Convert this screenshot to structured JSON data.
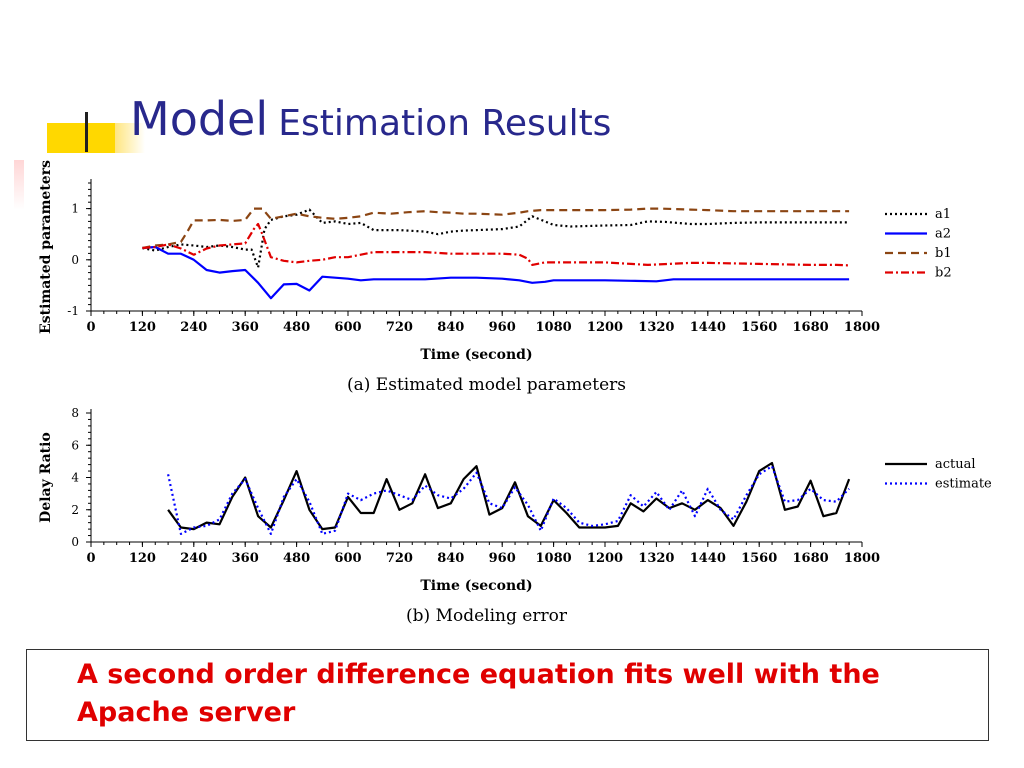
{
  "slide": {
    "title_word1": "Model",
    "title_rest": "Estimation Results",
    "conclusion": "A second order difference equation fits well with the Apache server",
    "accent_title_color": "#28288c",
    "accent_conclusion_color": "#e00000",
    "accent_decoration_color": "#ffd800"
  },
  "chart_data": [
    {
      "type": "line",
      "caption": "(a) Estimated model parameters",
      "xlabel": "Time (second)",
      "ylabel": "Estimated parameters",
      "xlim": [
        0,
        1800
      ],
      "ylim": [
        -1,
        1.5
      ],
      "xticks": [
        0,
        120,
        240,
        360,
        480,
        600,
        720,
        840,
        960,
        1080,
        1200,
        1320,
        1440,
        1560,
        1680,
        1800
      ],
      "yticks": [
        -1,
        0,
        1
      ],
      "legend": "right",
      "series": [
        {
          "name": "a1",
          "color": "#000000",
          "dash": "dotted",
          "x": [
            120,
            150,
            180,
            210,
            240,
            270,
            300,
            330,
            360,
            375,
            390,
            405,
            420,
            450,
            480,
            510,
            525,
            540,
            570,
            600,
            630,
            660,
            720,
            780,
            810,
            840,
            870,
            900,
            960,
            1000,
            1030,
            1060,
            1080,
            1120,
            1200,
            1260,
            1300,
            1340,
            1400,
            1440,
            1500,
            1560,
            1620,
            1680,
            1740,
            1770
          ],
          "y": [
            0.23,
            0.18,
            0.25,
            0.3,
            0.28,
            0.25,
            0.28,
            0.25,
            0.2,
            0.2,
            -0.15,
            0.6,
            0.78,
            0.85,
            0.88,
            0.98,
            0.85,
            0.72,
            0.75,
            0.7,
            0.72,
            0.58,
            0.58,
            0.55,
            0.5,
            0.55,
            0.57,
            0.58,
            0.6,
            0.65,
            0.85,
            0.75,
            0.68,
            0.65,
            0.67,
            0.68,
            0.75,
            0.74,
            0.7,
            0.7,
            0.72,
            0.73,
            0.73,
            0.73,
            0.73,
            0.73
          ]
        },
        {
          "name": "a2",
          "color": "#0000ff",
          "dash": "solid",
          "x": [
            120,
            150,
            180,
            210,
            240,
            270,
            300,
            330,
            360,
            390,
            420,
            450,
            480,
            510,
            540,
            570,
            600,
            630,
            660,
            720,
            780,
            840,
            900,
            960,
            1000,
            1030,
            1060,
            1080,
            1140,
            1200,
            1260,
            1320,
            1360,
            1440,
            1500,
            1560,
            1620,
            1680,
            1740,
            1770
          ],
          "y": [
            0.23,
            0.25,
            0.12,
            0.12,
            0.0,
            -0.2,
            -0.25,
            -0.22,
            -0.2,
            -0.45,
            -0.75,
            -0.48,
            -0.47,
            -0.6,
            -0.33,
            -0.35,
            -0.37,
            -0.4,
            -0.38,
            -0.38,
            -0.38,
            -0.35,
            -0.35,
            -0.37,
            -0.4,
            -0.45,
            -0.43,
            -0.4,
            -0.4,
            -0.4,
            -0.41,
            -0.42,
            -0.38,
            -0.38,
            -0.38,
            -0.38,
            -0.38,
            -0.38,
            -0.38,
            -0.38
          ]
        },
        {
          "name": "b1",
          "color": "#8b4513",
          "dash": "dashed",
          "x": [
            120,
            150,
            180,
            210,
            225,
            240,
            270,
            300,
            330,
            360,
            380,
            400,
            420,
            450,
            480,
            510,
            540,
            570,
            600,
            630,
            660,
            700,
            740,
            780,
            810,
            840,
            870,
            900,
            960,
            1000,
            1020,
            1050,
            1080,
            1120,
            1200,
            1260,
            1300,
            1330,
            1400,
            1440,
            1500,
            1560,
            1620,
            1680,
            1740,
            1770
          ],
          "y": [
            0.23,
            0.28,
            0.3,
            0.35,
            0.55,
            0.77,
            0.77,
            0.78,
            0.76,
            0.78,
            1.0,
            1.0,
            0.8,
            0.85,
            0.9,
            0.85,
            0.82,
            0.8,
            0.82,
            0.85,
            0.92,
            0.9,
            0.93,
            0.95,
            0.93,
            0.92,
            0.9,
            0.9,
            0.88,
            0.92,
            0.95,
            0.97,
            0.97,
            0.97,
            0.97,
            0.98,
            1.0,
            1.0,
            0.98,
            0.97,
            0.95,
            0.95,
            0.95,
            0.95,
            0.95,
            0.95
          ]
        },
        {
          "name": "b2",
          "color": "#e00000",
          "dash": "dashdot",
          "x": [
            120,
            150,
            180,
            210,
            240,
            270,
            300,
            330,
            360,
            380,
            390,
            400,
            420,
            450,
            480,
            510,
            540,
            570,
            600,
            630,
            660,
            720,
            780,
            840,
            900,
            960,
            1000,
            1020,
            1030,
            1060,
            1080,
            1140,
            1200,
            1260,
            1300,
            1350,
            1400,
            1440,
            1500,
            1560,
            1620,
            1680,
            1740,
            1770
          ],
          "y": [
            0.23,
            0.25,
            0.3,
            0.22,
            0.1,
            0.22,
            0.28,
            0.3,
            0.32,
            0.6,
            0.7,
            0.5,
            0.05,
            -0.02,
            -0.05,
            -0.02,
            0.0,
            0.05,
            0.05,
            0.1,
            0.15,
            0.15,
            0.15,
            0.12,
            0.12,
            0.12,
            0.1,
            0.02,
            -0.1,
            -0.05,
            -0.05,
            -0.05,
            -0.05,
            -0.08,
            -0.1,
            -0.08,
            -0.06,
            -0.06,
            -0.07,
            -0.08,
            -0.09,
            -0.1,
            -0.1,
            -0.11
          ]
        }
      ]
    },
    {
      "type": "line",
      "caption": "(b) Modeling error",
      "xlabel": "Time (second)",
      "ylabel": "Delay Ratio",
      "xlim": [
        0,
        1800
      ],
      "ylim": [
        0,
        8
      ],
      "xticks": [
        0,
        120,
        240,
        360,
        480,
        600,
        720,
        840,
        960,
        1080,
        1200,
        1320,
        1440,
        1560,
        1680,
        1800
      ],
      "yticks": [
        0,
        2,
        4,
        6,
        8
      ],
      "legend": "right",
      "series": [
        {
          "name": "actual",
          "color": "#000000",
          "dash": "solid",
          "x": [
            180,
            210,
            240,
            270,
            300,
            330,
            360,
            390,
            420,
            450,
            480,
            510,
            540,
            570,
            600,
            630,
            660,
            690,
            720,
            750,
            780,
            810,
            840,
            870,
            900,
            930,
            960,
            990,
            1020,
            1050,
            1080,
            1110,
            1140,
            1170,
            1200,
            1230,
            1260,
            1290,
            1320,
            1350,
            1380,
            1410,
            1440,
            1470,
            1500,
            1530,
            1560,
            1590,
            1620,
            1650,
            1680,
            1710,
            1740,
            1770
          ],
          "y": [
            2.0,
            0.9,
            0.8,
            1.2,
            1.1,
            2.8,
            4.0,
            1.6,
            0.9,
            2.6,
            4.4,
            2.0,
            0.8,
            0.9,
            2.8,
            1.8,
            1.8,
            3.9,
            2.0,
            2.4,
            4.2,
            2.1,
            2.4,
            3.9,
            4.7,
            1.7,
            2.1,
            3.7,
            1.6,
            1.0,
            2.6,
            1.8,
            0.9,
            0.9,
            0.9,
            1.0,
            2.4,
            1.9,
            2.7,
            2.1,
            2.4,
            2.0,
            2.6,
            2.1,
            1.0,
            2.5,
            4.4,
            4.9,
            2.0,
            2.2,
            3.8,
            1.6,
            1.8,
            3.9
          ]
        },
        {
          "name": "estimate",
          "color": "#0000ff",
          "dash": "dotted",
          "x": [
            180,
            210,
            240,
            270,
            300,
            330,
            360,
            390,
            420,
            450,
            480,
            510,
            540,
            570,
            600,
            630,
            660,
            690,
            720,
            750,
            780,
            810,
            840,
            870,
            900,
            930,
            960,
            990,
            1020,
            1050,
            1080,
            1110,
            1140,
            1170,
            1200,
            1230,
            1260,
            1290,
            1320,
            1350,
            1380,
            1410,
            1440,
            1470,
            1500,
            1530,
            1560,
            1590,
            1620,
            1650,
            1680,
            1710,
            1740,
            1770
          ],
          "y": [
            4.2,
            0.5,
            0.9,
            1.0,
            1.4,
            3.0,
            3.9,
            2.1,
            0.5,
            2.8,
            3.9,
            2.5,
            0.5,
            0.7,
            3.0,
            2.6,
            3.0,
            3.2,
            2.9,
            2.6,
            3.5,
            2.9,
            2.7,
            3.3,
            4.3,
            2.4,
            2.1,
            3.4,
            2.3,
            0.7,
            2.7,
            2.1,
            1.2,
            1.0,
            1.1,
            1.3,
            2.9,
            2.2,
            3.1,
            2.0,
            3.2,
            1.6,
            3.3,
            2.0,
            1.4,
            2.9,
            4.2,
            4.7,
            2.5,
            2.6,
            3.3,
            2.6,
            2.5,
            3.3
          ]
        }
      ]
    }
  ]
}
